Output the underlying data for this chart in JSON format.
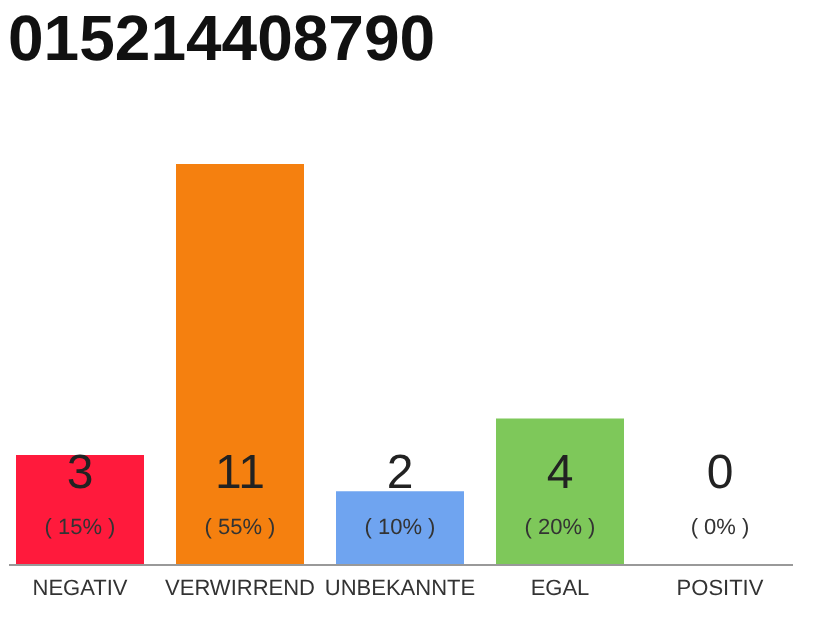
{
  "chart_data": {
    "type": "bar",
    "title": "015214408790",
    "categories": [
      "NEGATIV",
      "VERWIRREND",
      "UNBEKANNTE",
      "EGAL",
      "POSITIV"
    ],
    "values": [
      3,
      11,
      2,
      4,
      0
    ],
    "colors": [
      "#ff1a3c",
      "#f5800f",
      "#6fa4f0",
      "#7ec85a",
      "#cccccc"
    ],
    "data_labels": true,
    "tick_labels": "x",
    "ylim": [
      0,
      11
    ],
    "annotations": [
      "( 15% )",
      "( 55% )",
      "( 10% )",
      "( 20% )",
      "( 0% )"
    ]
  }
}
